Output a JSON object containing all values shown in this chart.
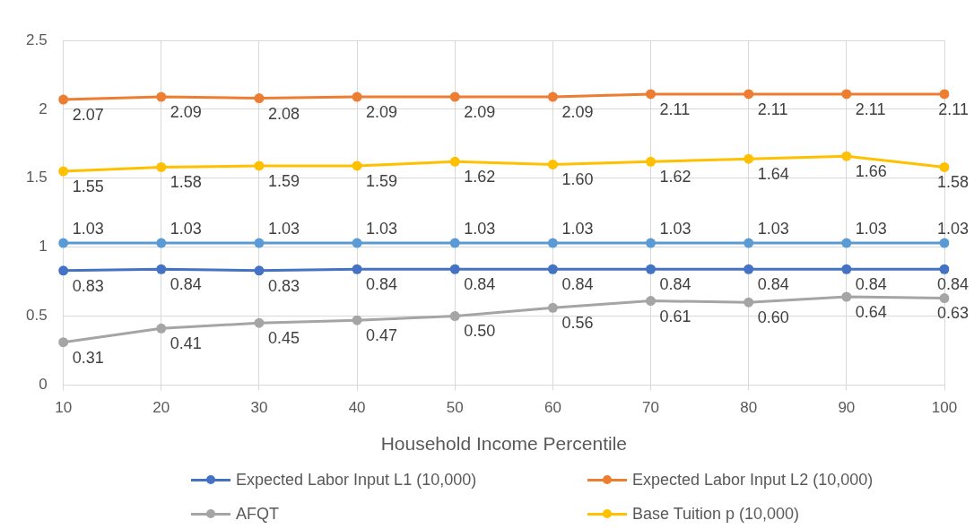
{
  "chart_data": {
    "type": "line",
    "xlabel": "Household Income Percentile",
    "categories": [
      "10",
      "20",
      "30",
      "40",
      "50",
      "60",
      "70",
      "80",
      "90",
      "100"
    ],
    "series": [
      {
        "name": "Expected Labor Input L1 (10,000)",
        "color": "#4472c4",
        "values": [
          0.83,
          0.84,
          0.83,
          0.84,
          0.84,
          0.84,
          0.84,
          0.84,
          0.84,
          0.84
        ],
        "value_labels": [
          "0.83",
          "0.84",
          "0.83",
          "0.84",
          "0.84",
          "0.84",
          "0.84",
          "0.84",
          "0.84",
          "0.84"
        ]
      },
      {
        "name": "Expected Labor Input L2 (10,000)",
        "color": "#ed7d31",
        "values": [
          2.07,
          2.09,
          2.08,
          2.09,
          2.09,
          2.09,
          2.11,
          2.11,
          2.11,
          2.11
        ],
        "value_labels": [
          "2.07",
          "2.09",
          "2.08",
          "2.09",
          "2.09",
          "2.09",
          "2.11",
          "2.11",
          "2.11",
          "2.11"
        ]
      },
      {
        "name": "AFQT",
        "color": "#a5a5a5",
        "values": [
          0.31,
          0.41,
          0.45,
          0.47,
          0.5,
          0.56,
          0.61,
          0.6,
          0.64,
          0.63
        ],
        "value_labels": [
          "0.31",
          "0.41",
          "0.45",
          "0.47",
          "0.50",
          "0.56",
          "0.61",
          "0.60",
          "0.64",
          "0.63"
        ]
      },
      {
        "name": "Base Tuition p (10,000)",
        "color": "#ffc000",
        "values": [
          1.55,
          1.58,
          1.59,
          1.59,
          1.62,
          1.6,
          1.62,
          1.64,
          1.66,
          1.58
        ],
        "value_labels": [
          "1.55",
          "1.58",
          "1.59",
          "1.59",
          "1.62",
          "1.60",
          "1.62",
          "1.64",
          "1.66",
          "1.58"
        ]
      },
      {
        "color": "#5b9bd5",
        "values": [
          1.03,
          1.03,
          1.03,
          1.03,
          1.03,
          1.03,
          1.03,
          1.03,
          1.03,
          1.03
        ],
        "value_labels": [
          "1.03",
          "1.03",
          "1.03",
          "1.03",
          "1.03",
          "1.03",
          "1.03",
          "1.03",
          "1.03",
          "1.03"
        ]
      }
    ],
    "ylim": [
      0,
      2.5
    ],
    "yticks": [
      0,
      0.5,
      1,
      1.5,
      2,
      2.5
    ],
    "grid": true,
    "legend": "bottom",
    "marker": "circle"
  }
}
